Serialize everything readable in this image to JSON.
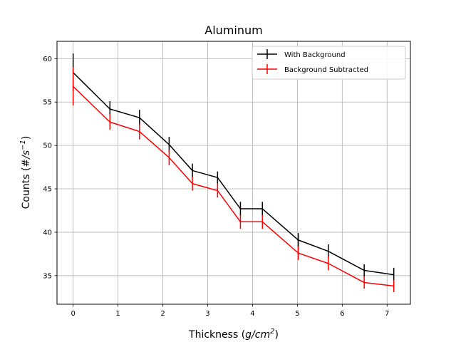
{
  "chart_data": {
    "type": "line",
    "title": "Aluminum",
    "xlabel_prefix": "Thickness (",
    "xlabel_var": "g/cm",
    "xlabel_sup": "2",
    "xlabel_suffix": ")",
    "ylabel_prefix": "Counts (",
    "ylabel_var": "#/s",
    "ylabel_sup": "−1",
    "ylabel_suffix": ")",
    "xlim": [
      -0.36,
      7.52
    ],
    "ylim": [
      31.7,
      62.0
    ],
    "xticks": [
      0,
      1,
      2,
      3,
      4,
      5,
      6,
      7
    ],
    "yticks": [
      35,
      40,
      45,
      50,
      55,
      60
    ],
    "grid": true,
    "legend_position": "top-right",
    "series": [
      {
        "name": "With Background",
        "color": "#000000",
        "x": [
          0,
          0.82,
          1.48,
          2.14,
          2.66,
          3.22,
          3.73,
          4.22,
          5.02,
          5.69,
          6.49,
          7.15
        ],
        "y": [
          58.4,
          54.2,
          53.2,
          50.1,
          47.1,
          46.3,
          42.7,
          42.7,
          39.1,
          37.8,
          35.6,
          35.1
        ],
        "err": [
          2.2,
          0.9,
          0.9,
          0.9,
          0.8,
          0.7,
          0.8,
          0.8,
          0.8,
          0.8,
          0.7,
          0.8
        ]
      },
      {
        "name": "Background Subtracted",
        "color": "#ff0000",
        "x": [
          0,
          0.82,
          1.48,
          2.14,
          2.66,
          3.22,
          3.73,
          4.22,
          5.02,
          5.69,
          6.49,
          7.15
        ],
        "y": [
          56.8,
          52.7,
          51.6,
          48.6,
          45.6,
          44.8,
          41.2,
          41.2,
          37.6,
          36.4,
          34.2,
          33.8
        ],
        "err": [
          2.2,
          0.9,
          0.9,
          0.9,
          0.8,
          0.8,
          0.8,
          0.8,
          0.8,
          0.8,
          0.7,
          0.7
        ]
      }
    ]
  }
}
